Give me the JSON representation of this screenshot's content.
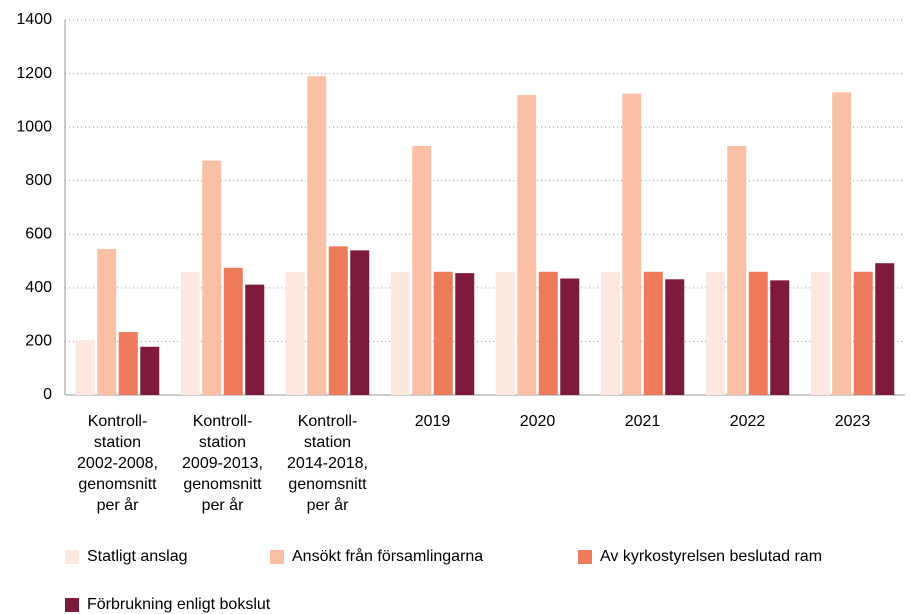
{
  "chart_data": {
    "type": "bar",
    "categories": [
      "Kontroll-\nstation\n2002-2008,\ngenomsnitt\nper år",
      "Kontroll-\nstation\n2009-2013,\ngenomsnitt\nper år",
      "Kontroll-\nstation\n2014-2018,\ngenomsnitt\nper år",
      "2019",
      "2020",
      "2021",
      "2022",
      "2023"
    ],
    "series": [
      {
        "name": "Statligt anslag",
        "color": "#fde8df",
        "values": [
          205,
          460,
          460,
          460,
          460,
          460,
          460,
          460
        ]
      },
      {
        "name": "Ansökt från församlingarna",
        "color": "#f9c0a6",
        "values": [
          545,
          875,
          1190,
          930,
          1120,
          1125,
          930,
          1130
        ]
      },
      {
        "name": "Av kyrkostyrelsen beslutad ram",
        "color": "#ee7a5c",
        "values": [
          235,
          475,
          555,
          460,
          460,
          460,
          460,
          460
        ]
      },
      {
        "name": "Förbrukning enligt bokslut",
        "color": "#7e1a3d",
        "values": [
          180,
          412,
          540,
          455,
          435,
          432,
          428,
          492
        ]
      }
    ],
    "ylim": [
      0,
      1400
    ],
    "yticks": [
      0,
      200,
      400,
      600,
      800,
      1000,
      1200,
      1400
    ],
    "grid": true
  }
}
